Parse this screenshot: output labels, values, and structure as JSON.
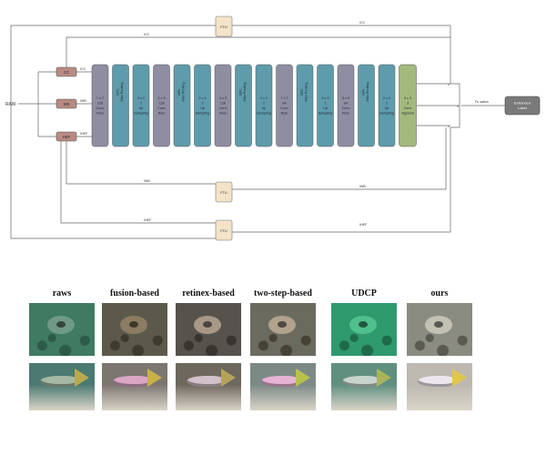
{
  "diagram": {
    "input_label": "RAW",
    "inputs": [
      {
        "id": "cc",
        "label": "CC",
        "wire_label": "ICC"
      },
      {
        "id": "wb",
        "label": "WB",
        "wire_label": "IWB"
      },
      {
        "id": "he",
        "label": "HEF",
        "wire_label": "IHEF"
      }
    ],
    "ftu_label": "FTU",
    "blocks": [
      {
        "kind": "conv",
        "lines": [
          "7 x 7",
          "128",
          "Conv",
          "Relu"
        ]
      },
      {
        "kind": "pool",
        "lines": [
          "BPL",
          "Max Pooling"
        ],
        "rotated": true
      },
      {
        "kind": "pool",
        "lines": [
          "2 x 2",
          "2",
          "Up",
          "Sampling"
        ]
      },
      {
        "kind": "conv",
        "lines": [
          "5 x 5",
          "128",
          "Conv",
          "Relu"
        ]
      },
      {
        "kind": "pool",
        "lines": [
          "BPL",
          "Max Pooling"
        ],
        "rotated": true
      },
      {
        "kind": "pool",
        "lines": [
          "2 x 2",
          "2",
          "Up",
          "Sampling"
        ]
      },
      {
        "kind": "conv",
        "lines": [
          "3 x 3",
          "128",
          "Conv",
          "Relu"
        ]
      },
      {
        "kind": "pool",
        "lines": [
          "BPL",
          "Max Pooling"
        ],
        "rotated": true
      },
      {
        "kind": "pool",
        "lines": [
          "2 x 2",
          "2",
          "Up",
          "Sampling"
        ]
      },
      {
        "kind": "conv",
        "lines": [
          "7 x 7",
          "64",
          "Conv",
          "Relu"
        ]
      },
      {
        "kind": "pool",
        "lines": [
          "BPL",
          "Max Pooling"
        ],
        "rotated": true
      },
      {
        "kind": "pool",
        "lines": [
          "2 x 2",
          "2",
          "Up",
          "Sampling"
        ]
      },
      {
        "kind": "conv",
        "lines": [
          "5 x 5",
          "64",
          "Conv",
          "Relu"
        ]
      },
      {
        "kind": "pool",
        "lines": [
          "BPL",
          "Max Pooling"
        ],
        "rotated": true
      },
      {
        "kind": "pool",
        "lines": [
          "2 x 2",
          "2",
          "Up",
          "Sampling"
        ]
      },
      {
        "kind": "final",
        "lines": [
          "3 x 3",
          "3",
          "Conv",
          "Sigmoid"
        ]
      }
    ],
    "output_wire_label": "Fu sation",
    "output_label_lines": [
      "Enhanced",
      "Label"
    ],
    "mult_symbol": "x",
    "colors": {
      "conv": "#8f8da2",
      "pool": "#5e9bab",
      "final": "#a3b87d",
      "input": "#b88a82",
      "ftu": "#f2e3c9",
      "output": "#7a7a7a"
    }
  },
  "comparison": {
    "columns": [
      "raws",
      "fusion-based",
      "retinex-based",
      "two-step-based",
      "UDCP",
      "ours"
    ],
    "row1_styles": [
      {
        "bg": "#3f7a63",
        "ring": "#6f9a86",
        "rock": "#2e5a48"
      },
      {
        "bg": "#5b5a4a",
        "ring": "#8b7c62",
        "rock": "#3d3a2e"
      },
      {
        "bg": "#56524c",
        "ring": "#a89886",
        "rock": "#3a3430"
      },
      {
        "bg": "#6b6a5e",
        "ring": "#b0a28c",
        "rock": "#474236"
      },
      {
        "bg": "#2f9a6e",
        "ring": "#4fc08e",
        "rock": "#1f6a4a"
      },
      {
        "bg": "#8a8c82",
        "ring": "#c3c1b4",
        "rock": "#5a5a52"
      }
    ],
    "row2_styles": [
      {
        "bg": "#4a7a72",
        "fish": "#a6b9a4",
        "tail": "#b9a94e"
      },
      {
        "bg": "#7b7670",
        "fish": "#d9a6c4",
        "tail": "#c9b04a"
      },
      {
        "bg": "#6e675e",
        "fish": "#d2c1c8",
        "tail": "#b5a35a"
      },
      {
        "bg": "#7c8a86",
        "fish": "#e6b3d3",
        "tail": "#b9c14e"
      },
      {
        "bg": "#5f8f7f",
        "fish": "#c7d4cc",
        "tail": "#a9b45a"
      },
      {
        "bg": "#bdb8b0",
        "fish": "#ece7ee",
        "tail": "#e0c64a"
      }
    ]
  }
}
